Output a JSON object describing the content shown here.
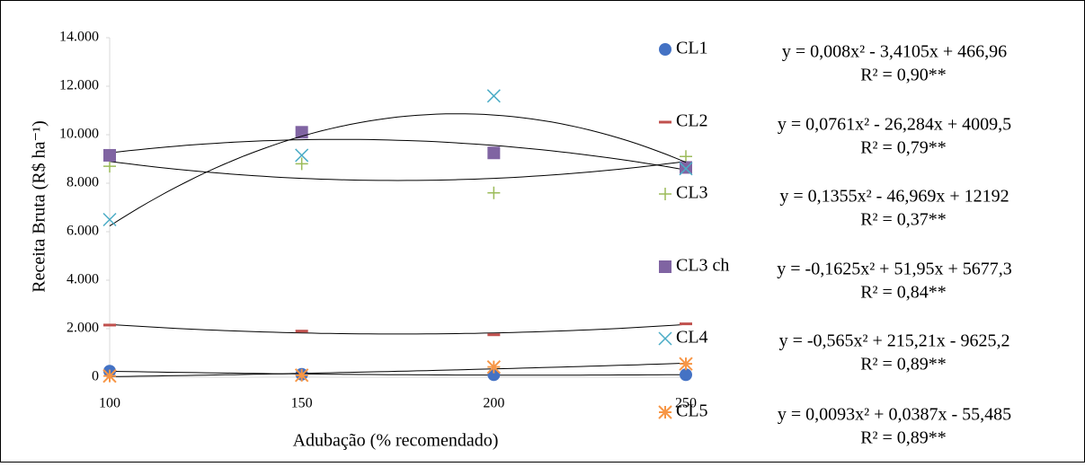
{
  "chart_data": {
    "type": "scatter",
    "x_label": "Adubação (% recomendado)",
    "y_label": "Receita  Bruta (R$ ha⁻¹)",
    "x": [
      100,
      150,
      200,
      250
    ],
    "xlim": [
      100,
      250
    ],
    "xticks": [
      100,
      150,
      200,
      250
    ],
    "ylim": [
      0,
      14000
    ],
    "yticks": [
      0,
      {
        "value": 2000,
        "label": "2.000"
      },
      {
        "value": 4000,
        "label": "4.000"
      },
      {
        "value": 6000,
        "label": "6.000"
      },
      {
        "value": 8000,
        "label": "8.000"
      },
      {
        "value": 10000,
        "label": "10.000"
      },
      {
        "value": 12000,
        "label": "12.000"
      },
      {
        "value": 14000,
        "label": "14.000"
      }
    ],
    "trendline": "polynomial",
    "series": [
      {
        "name": "CL1",
        "color": "#4472c4",
        "marker": "circle",
        "values": [
          250,
          120,
          100,
          100
        ],
        "equation": "y = 0,008x² - 3,4105x + 466,96",
        "r2": "R² = 0,90**"
      },
      {
        "name": "CL2",
        "color": "#c0504d",
        "marker": "dash",
        "values": [
          2150,
          1900,
          1750,
          2200
        ],
        "equation": "y = 0,0761x² - 26,284x + 4009,5",
        "r2": "R² = 0,79**"
      },
      {
        "name": "CL3",
        "color": "#9bbb59",
        "marker": "plus",
        "values": [
          8700,
          8800,
          7600,
          9100
        ],
        "equation": "y = 0,1355x² - 46,969x + 12192",
        "r2": "R² = 0,37**"
      },
      {
        "name": "CL3 ch",
        "color": "#8064a2",
        "marker": "square",
        "values": [
          9150,
          10100,
          9250,
          8650
        ],
        "equation": "y = -0,1625x² + 51,95x + 5677,3",
        "r2": "R² = 0,84**"
      },
      {
        "name": "CL4",
        "color": "#4bacc6",
        "marker": "x",
        "values": [
          6500,
          9150,
          11600,
          8600
        ],
        "equation": "y = -0,565x² + 215,21x - 9625,2",
        "r2": "R² = 0,89**"
      },
      {
        "name": "CL5",
        "color": "#f79646",
        "marker": "asterisk",
        "values": [
          50,
          80,
          420,
          550
        ],
        "equation": "y = 0,0093x² + 0,0387x - 55,485",
        "r2": "R² = 0,89**"
      }
    ]
  }
}
